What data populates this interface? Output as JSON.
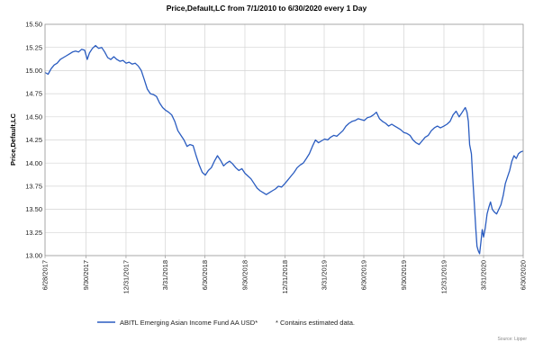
{
  "chart_data": {
    "type": "line",
    "title": "Price,Default,LC from 7/1/2010 to 6/30/2020 every 1 Day",
    "ylabel": "Price,Default,LC",
    "xlabel": "",
    "ylim": [
      13.0,
      15.5
    ],
    "yticks": [
      "15.50",
      "15.25",
      "15.00",
      "14.75",
      "14.50",
      "14.25",
      "14.00",
      "13.75",
      "13.50",
      "13.25",
      "13.00"
    ],
    "xtick_labels": [
      "6/28/2017",
      "9/30/2017",
      "12/31/2017",
      "3/31/2018",
      "6/30/2018",
      "9/30/2018",
      "12/31/2018",
      "3/31/2019",
      "6/30/2019",
      "9/30/2019",
      "12/31/2019",
      "3/31/2020",
      "6/30/2020"
    ],
    "grid": true,
    "legend_position": "bottom",
    "series": [
      {
        "name": "ABITL Emerging Asian Income Fund AA USD*",
        "color": "#2a5cc0",
        "points": [
          [
            "2017-06-28",
            14.98
          ],
          [
            "2017-07-05",
            14.96
          ],
          [
            "2017-07-12",
            15.02
          ],
          [
            "2017-07-19",
            15.06
          ],
          [
            "2017-07-26",
            15.08
          ],
          [
            "2017-08-02",
            15.12
          ],
          [
            "2017-08-09",
            15.14
          ],
          [
            "2017-08-16",
            15.16
          ],
          [
            "2017-08-23",
            15.18
          ],
          [
            "2017-08-30",
            15.2
          ],
          [
            "2017-09-06",
            15.21
          ],
          [
            "2017-09-13",
            15.2
          ],
          [
            "2017-09-20",
            15.23
          ],
          [
            "2017-09-27",
            15.22
          ],
          [
            "2017-10-03",
            15.12
          ],
          [
            "2017-10-08",
            15.19
          ],
          [
            "2017-10-15",
            15.24
          ],
          [
            "2017-10-22",
            15.27
          ],
          [
            "2017-10-29",
            15.24
          ],
          [
            "2017-11-05",
            15.25
          ],
          [
            "2017-11-12",
            15.2
          ],
          [
            "2017-11-19",
            15.14
          ],
          [
            "2017-11-26",
            15.12
          ],
          [
            "2017-12-03",
            15.15
          ],
          [
            "2017-12-10",
            15.12
          ],
          [
            "2017-12-17",
            15.1
          ],
          [
            "2017-12-24",
            15.11
          ],
          [
            "2017-12-31",
            15.08
          ],
          [
            "2018-01-07",
            15.09
          ],
          [
            "2018-01-14",
            15.07
          ],
          [
            "2018-01-21",
            15.08
          ],
          [
            "2018-01-28",
            15.05
          ],
          [
            "2018-02-04",
            15.0
          ],
          [
            "2018-02-11",
            14.9
          ],
          [
            "2018-02-18",
            14.8
          ],
          [
            "2018-02-25",
            14.75
          ],
          [
            "2018-03-04",
            14.74
          ],
          [
            "2018-03-11",
            14.72
          ],
          [
            "2018-03-18",
            14.65
          ],
          [
            "2018-03-25",
            14.6
          ],
          [
            "2018-04-01",
            14.57
          ],
          [
            "2018-04-08",
            14.55
          ],
          [
            "2018-04-15",
            14.52
          ],
          [
            "2018-04-22",
            14.45
          ],
          [
            "2018-04-29",
            14.35
          ],
          [
            "2018-05-06",
            14.3
          ],
          [
            "2018-05-13",
            14.25
          ],
          [
            "2018-05-20",
            14.18
          ],
          [
            "2018-05-27",
            14.2
          ],
          [
            "2018-06-03",
            14.19
          ],
          [
            "2018-06-10",
            14.08
          ],
          [
            "2018-06-17",
            13.98
          ],
          [
            "2018-06-24",
            13.9
          ],
          [
            "2018-07-01",
            13.87
          ],
          [
            "2018-07-08",
            13.92
          ],
          [
            "2018-07-15",
            13.95
          ],
          [
            "2018-07-22",
            14.02
          ],
          [
            "2018-07-29",
            14.08
          ],
          [
            "2018-08-05",
            14.03
          ],
          [
            "2018-08-12",
            13.97
          ],
          [
            "2018-08-19",
            14.0
          ],
          [
            "2018-08-26",
            14.02
          ],
          [
            "2018-09-02",
            13.99
          ],
          [
            "2018-09-09",
            13.95
          ],
          [
            "2018-09-16",
            13.92
          ],
          [
            "2018-09-23",
            13.94
          ],
          [
            "2018-09-30",
            13.89
          ],
          [
            "2018-10-07",
            13.86
          ],
          [
            "2018-10-14",
            13.83
          ],
          [
            "2018-10-21",
            13.78
          ],
          [
            "2018-10-28",
            13.73
          ],
          [
            "2018-11-04",
            13.7
          ],
          [
            "2018-11-11",
            13.68
          ],
          [
            "2018-11-18",
            13.66
          ],
          [
            "2018-11-25",
            13.68
          ],
          [
            "2018-12-02",
            13.7
          ],
          [
            "2018-12-09",
            13.72
          ],
          [
            "2018-12-16",
            13.75
          ],
          [
            "2018-12-23",
            13.74
          ],
          [
            "2018-12-31",
            13.78
          ],
          [
            "2019-01-07",
            13.82
          ],
          [
            "2019-01-14",
            13.86
          ],
          [
            "2019-01-21",
            13.9
          ],
          [
            "2019-01-28",
            13.95
          ],
          [
            "2019-02-04",
            13.98
          ],
          [
            "2019-02-11",
            14.0
          ],
          [
            "2019-02-18",
            14.05
          ],
          [
            "2019-02-25",
            14.1
          ],
          [
            "2019-03-04",
            14.18
          ],
          [
            "2019-03-11",
            14.25
          ],
          [
            "2019-03-18",
            14.22
          ],
          [
            "2019-03-25",
            14.24
          ],
          [
            "2019-04-01",
            14.26
          ],
          [
            "2019-04-08",
            14.25
          ],
          [
            "2019-04-15",
            14.28
          ],
          [
            "2019-04-22",
            14.3
          ],
          [
            "2019-04-29",
            14.29
          ],
          [
            "2019-05-06",
            14.32
          ],
          [
            "2019-05-13",
            14.35
          ],
          [
            "2019-05-20",
            14.4
          ],
          [
            "2019-05-27",
            14.43
          ],
          [
            "2019-06-03",
            14.45
          ],
          [
            "2019-06-10",
            14.46
          ],
          [
            "2019-06-17",
            14.48
          ],
          [
            "2019-06-24",
            14.47
          ],
          [
            "2019-07-01",
            14.46
          ],
          [
            "2019-07-08",
            14.49
          ],
          [
            "2019-07-15",
            14.5
          ],
          [
            "2019-07-22",
            14.52
          ],
          [
            "2019-07-29",
            14.55
          ],
          [
            "2019-08-05",
            14.48
          ],
          [
            "2019-08-12",
            14.45
          ],
          [
            "2019-08-19",
            14.43
          ],
          [
            "2019-08-26",
            14.4
          ],
          [
            "2019-09-02",
            14.42
          ],
          [
            "2019-09-09",
            14.4
          ],
          [
            "2019-09-16",
            14.38
          ],
          [
            "2019-09-23",
            14.36
          ],
          [
            "2019-09-30",
            14.33
          ],
          [
            "2019-10-07",
            14.32
          ],
          [
            "2019-10-14",
            14.3
          ],
          [
            "2019-10-21",
            14.25
          ],
          [
            "2019-10-28",
            14.22
          ],
          [
            "2019-11-04",
            14.2
          ],
          [
            "2019-11-11",
            14.24
          ],
          [
            "2019-11-18",
            14.28
          ],
          [
            "2019-11-25",
            14.3
          ],
          [
            "2019-12-02",
            14.35
          ],
          [
            "2019-12-09",
            14.38
          ],
          [
            "2019-12-16",
            14.4
          ],
          [
            "2019-12-23",
            14.38
          ],
          [
            "2019-12-31",
            14.4
          ],
          [
            "2020-01-07",
            14.42
          ],
          [
            "2020-01-14",
            14.45
          ],
          [
            "2020-01-21",
            14.52
          ],
          [
            "2020-01-28",
            14.56
          ],
          [
            "2020-02-04",
            14.5
          ],
          [
            "2020-02-11",
            14.55
          ],
          [
            "2020-02-18",
            14.6
          ],
          [
            "2020-02-22",
            14.55
          ],
          [
            "2020-02-25",
            14.45
          ],
          [
            "2020-02-28",
            14.2
          ],
          [
            "2020-03-03",
            14.1
          ],
          [
            "2020-03-06",
            13.85
          ],
          [
            "2020-03-10",
            13.55
          ],
          [
            "2020-03-13",
            13.3
          ],
          [
            "2020-03-16",
            13.1
          ],
          [
            "2020-03-19",
            13.05
          ],
          [
            "2020-03-22",
            13.02
          ],
          [
            "2020-03-25",
            13.15
          ],
          [
            "2020-03-28",
            13.28
          ],
          [
            "2020-03-31",
            13.2
          ],
          [
            "2020-04-04",
            13.3
          ],
          [
            "2020-04-08",
            13.45
          ],
          [
            "2020-04-12",
            13.52
          ],
          [
            "2020-04-16",
            13.58
          ],
          [
            "2020-04-20",
            13.5
          ],
          [
            "2020-04-25",
            13.47
          ],
          [
            "2020-04-30",
            13.45
          ],
          [
            "2020-05-05",
            13.5
          ],
          [
            "2020-05-10",
            13.55
          ],
          [
            "2020-05-15",
            13.65
          ],
          [
            "2020-05-20",
            13.78
          ],
          [
            "2020-05-25",
            13.85
          ],
          [
            "2020-05-30",
            13.92
          ],
          [
            "2020-06-04",
            14.02
          ],
          [
            "2020-06-09",
            14.08
          ],
          [
            "2020-06-14",
            14.05
          ],
          [
            "2020-06-19",
            14.1
          ],
          [
            "2020-06-24",
            14.12
          ],
          [
            "2020-06-30",
            14.13
          ]
        ]
      }
    ],
    "note": "*  Contains estimated data.",
    "source": "Source: Lipper"
  }
}
